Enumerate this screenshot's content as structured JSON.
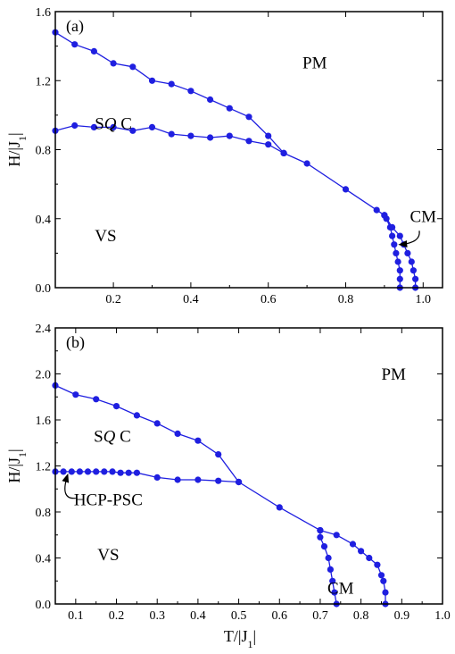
{
  "chart_data": [
    {
      "type": "line",
      "panel_label": "(a)",
      "xlabel": "",
      "ylabel": "H/|J1|",
      "xlim": [
        0.05,
        1.05
      ],
      "ylim": [
        0.0,
        1.6
      ],
      "xticks": [
        0.2,
        0.4,
        0.6,
        0.8,
        1.0
      ],
      "xtick_labels": [
        "0.2",
        "0.4",
        "0.6",
        "0.8",
        "1.0"
      ],
      "yticks": [
        0.0,
        0.4,
        0.8,
        1.2,
        1.6
      ],
      "ytick_labels": [
        "0.0",
        "0.4",
        "0.8",
        "1.2",
        "1.6"
      ],
      "color": "#1f1fe0",
      "series": [
        {
          "points": [
            [
              0.05,
              1.48
            ],
            [
              0.1,
              1.41
            ],
            [
              0.15,
              1.37
            ],
            [
              0.2,
              1.3
            ],
            [
              0.25,
              1.28
            ],
            [
              0.3,
              1.2
            ],
            [
              0.35,
              1.18
            ],
            [
              0.4,
              1.14
            ],
            [
              0.45,
              1.09
            ],
            [
              0.5,
              1.04
            ],
            [
              0.55,
              0.99
            ],
            [
              0.6,
              0.88
            ],
            [
              0.64,
              0.78
            ]
          ]
        },
        {
          "points": [
            [
              0.05,
              0.91
            ],
            [
              0.1,
              0.94
            ],
            [
              0.15,
              0.93
            ],
            [
              0.2,
              0.93
            ],
            [
              0.25,
              0.91
            ],
            [
              0.3,
              0.93
            ],
            [
              0.35,
              0.89
            ],
            [
              0.4,
              0.88
            ],
            [
              0.45,
              0.87
            ],
            [
              0.5,
              0.88
            ],
            [
              0.55,
              0.85
            ],
            [
              0.6,
              0.83
            ],
            [
              0.64,
              0.78
            ]
          ]
        },
        {
          "points": [
            [
              0.64,
              0.78
            ],
            [
              0.7,
              0.72
            ],
            [
              0.8,
              0.57
            ],
            [
              0.88,
              0.45
            ],
            [
              0.9,
              0.42
            ]
          ]
        },
        {
          "points": [
            [
              0.9,
              0.42
            ],
            [
              0.905,
              0.4
            ],
            [
              0.915,
              0.35
            ],
            [
              0.92,
              0.3
            ],
            [
              0.925,
              0.25
            ],
            [
              0.93,
              0.2
            ],
            [
              0.935,
              0.15
            ],
            [
              0.94,
              0.1
            ],
            [
              0.94,
              0.05
            ],
            [
              0.94,
              0.0
            ]
          ]
        },
        {
          "points": [
            [
              0.9,
              0.42
            ],
            [
              0.92,
              0.35
            ],
            [
              0.94,
              0.3
            ],
            [
              0.95,
              0.25
            ],
            [
              0.96,
              0.2
            ],
            [
              0.97,
              0.15
            ],
            [
              0.975,
              0.1
            ],
            [
              0.98,
              0.05
            ],
            [
              0.98,
              0.0
            ]
          ]
        }
      ],
      "labels": [
        {
          "text": "PM",
          "x": 0.72,
          "y": 1.27
        },
        {
          "text": "VS",
          "x": 0.18,
          "y": 0.27
        },
        {
          "text": "CM",
          "x": 1.0,
          "y": 0.38
        }
      ],
      "sqc_label": {
        "prefix": "S",
        "italic": "Q",
        "suffix": " C",
        "x": 0.2,
        "y": 0.92
      },
      "arrow": {
        "from": [
          0.99,
          0.33
        ],
        "to": [
          0.94,
          0.25
        ]
      }
    },
    {
      "type": "line",
      "panel_label": "(b)",
      "xlabel": "T/|J1|",
      "ylabel": "H/|J1|",
      "xlim": [
        0.05,
        1.0
      ],
      "ylim": [
        0.0,
        2.4
      ],
      "xticks": [
        0.1,
        0.2,
        0.3,
        0.4,
        0.5,
        0.6,
        0.7,
        0.8,
        0.9,
        1.0
      ],
      "xtick_labels": [
        "0.1",
        "0.2",
        "0.3",
        "0.4",
        "0.5",
        "0.6",
        "0.7",
        "0.8",
        "0.9",
        "1.0"
      ],
      "yticks": [
        0.0,
        0.4,
        0.8,
        1.2,
        1.6,
        2.0,
        2.4
      ],
      "ytick_labels": [
        "0.0",
        "0.4",
        "0.8",
        "1.2",
        "1.6",
        "2.0",
        "2.4"
      ],
      "color": "#1f1fe0",
      "series": [
        {
          "points": [
            [
              0.05,
              1.9
            ],
            [
              0.1,
              1.82
            ],
            [
              0.15,
              1.78
            ],
            [
              0.2,
              1.72
            ],
            [
              0.25,
              1.64
            ],
            [
              0.3,
              1.57
            ],
            [
              0.35,
              1.48
            ],
            [
              0.4,
              1.42
            ],
            [
              0.45,
              1.3
            ],
            [
              0.5,
              1.06
            ]
          ]
        },
        {
          "points": [
            [
              0.05,
              1.15
            ],
            [
              0.07,
              1.15
            ],
            [
              0.09,
              1.15
            ],
            [
              0.11,
              1.15
            ],
            [
              0.13,
              1.15
            ],
            [
              0.15,
              1.15
            ],
            [
              0.17,
              1.15
            ],
            [
              0.19,
              1.15
            ],
            [
              0.21,
              1.14
            ],
            [
              0.23,
              1.14
            ],
            [
              0.25,
              1.14
            ],
            [
              0.3,
              1.1
            ],
            [
              0.35,
              1.08
            ],
            [
              0.4,
              1.08
            ],
            [
              0.45,
              1.07
            ],
            [
              0.5,
              1.06
            ]
          ]
        },
        {
          "points": [
            [
              0.5,
              1.06
            ],
            [
              0.6,
              0.84
            ],
            [
              0.7,
              0.64
            ]
          ]
        },
        {
          "points": [
            [
              0.7,
              0.64
            ],
            [
              0.7,
              0.58
            ],
            [
              0.71,
              0.5
            ],
            [
              0.72,
              0.4
            ],
            [
              0.725,
              0.3
            ],
            [
              0.73,
              0.2
            ],
            [
              0.735,
              0.1
            ],
            [
              0.74,
              0.0
            ]
          ]
        },
        {
          "points": [
            [
              0.7,
              0.64
            ],
            [
              0.74,
              0.6
            ],
            [
              0.78,
              0.52
            ],
            [
              0.8,
              0.46
            ],
            [
              0.82,
              0.4
            ],
            [
              0.84,
              0.34
            ],
            [
              0.85,
              0.25
            ],
            [
              0.855,
              0.2
            ],
            [
              0.86,
              0.1
            ],
            [
              0.86,
              0.0
            ]
          ]
        }
      ],
      "labels": [
        {
          "text": "PM",
          "x": 0.88,
          "y": 1.95
        },
        {
          "text": "VS",
          "x": 0.18,
          "y": 0.38
        },
        {
          "text": "CM",
          "x": 0.75,
          "y": 0.09
        },
        {
          "text": "HCP-PSC",
          "x": 0.18,
          "y": 0.86
        }
      ],
      "sqc_label": {
        "prefix": "S",
        "italic": "Q",
        "suffix": " C",
        "x": 0.19,
        "y": 1.41
      },
      "arrow": {
        "from": [
          0.1,
          0.92
        ],
        "to": [
          0.08,
          1.12
        ]
      }
    }
  ]
}
